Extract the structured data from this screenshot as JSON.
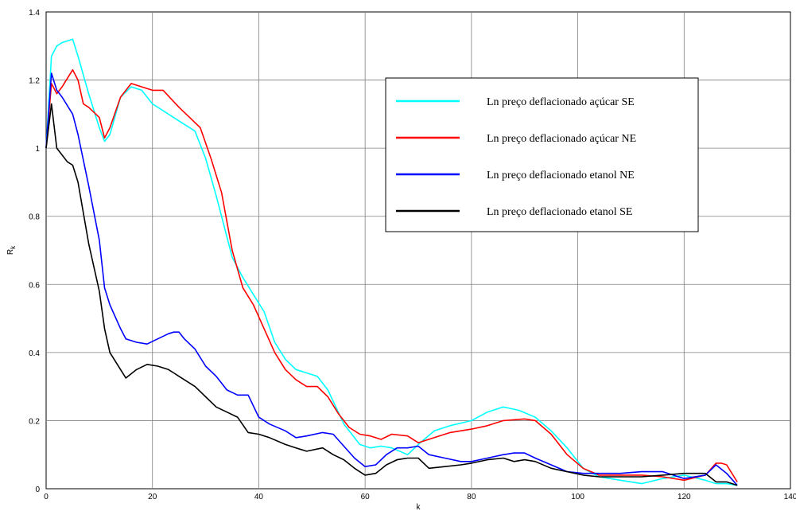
{
  "chart_data": {
    "type": "line",
    "title": "",
    "xlabel": "k",
    "ylabel": "R_k",
    "xlim": [
      0,
      140
    ],
    "ylim": [
      0,
      1.4
    ],
    "xticks": [
      0,
      20,
      40,
      60,
      80,
      100,
      120,
      140
    ],
    "yticks": [
      0,
      0.2,
      0.4,
      0.6,
      0.8,
      1,
      1.2,
      1.4
    ],
    "xtick_labels": [
      "0",
      "20",
      "40",
      "60",
      "80",
      "100",
      "120",
      "140"
    ],
    "ytick_labels": [
      "0",
      "0.2",
      "0.4",
      "0.6",
      "0.8",
      "1",
      "1.2",
      "1.4"
    ],
    "grid": true,
    "legend_position": "upper-right",
    "series": [
      {
        "name": "Ln preço deflacionado açúcar SE",
        "color": "#00ffff",
        "x": [
          0,
          1,
          2,
          3,
          5,
          6,
          8,
          10,
          11,
          12,
          14,
          16,
          18,
          20,
          22,
          25,
          28,
          30,
          32,
          35,
          37,
          39,
          41,
          43,
          45,
          47,
          49,
          51,
          53,
          56,
          59,
          61,
          63,
          65,
          68,
          70,
          73,
          76,
          80,
          83,
          86,
          89,
          92,
          95,
          98,
          101,
          104,
          108,
          112,
          116,
          120,
          124,
          126,
          128,
          130
        ],
        "values": [
          1.0,
          1.27,
          1.3,
          1.31,
          1.32,
          1.27,
          1.16,
          1.06,
          1.02,
          1.04,
          1.15,
          1.18,
          1.17,
          1.13,
          1.11,
          1.08,
          1.05,
          0.97,
          0.86,
          0.68,
          0.62,
          0.57,
          0.52,
          0.43,
          0.38,
          0.35,
          0.34,
          0.33,
          0.29,
          0.19,
          0.13,
          0.12,
          0.125,
          0.12,
          0.1,
          0.13,
          0.17,
          0.185,
          0.2,
          0.225,
          0.24,
          0.23,
          0.21,
          0.17,
          0.12,
          0.06,
          0.035,
          0.025,
          0.015,
          0.03,
          0.04,
          0.025,
          0.015,
          0.015,
          0.01
        ]
      },
      {
        "name": "Ln preço deflacionado açúcar NE",
        "color": "#ff0000",
        "x": [
          0,
          1,
          2,
          3,
          5,
          6,
          7,
          8,
          10,
          11,
          12,
          14,
          16,
          18,
          20,
          22,
          25,
          27,
          29,
          31,
          33,
          35,
          37,
          39,
          41,
          43,
          45,
          47,
          49,
          51,
          53,
          55,
          57,
          59,
          61,
          63,
          65,
          68,
          70,
          73,
          76,
          80,
          83,
          86,
          90,
          92,
          95,
          98,
          101,
          104,
          108,
          112,
          116,
          120,
          124,
          126,
          127,
          128,
          130
        ],
        "values": [
          1.0,
          1.19,
          1.16,
          1.18,
          1.23,
          1.2,
          1.13,
          1.12,
          1.09,
          1.03,
          1.06,
          1.15,
          1.19,
          1.18,
          1.17,
          1.17,
          1.12,
          1.09,
          1.06,
          0.97,
          0.87,
          0.7,
          0.59,
          0.54,
          0.47,
          0.4,
          0.35,
          0.32,
          0.3,
          0.3,
          0.27,
          0.22,
          0.18,
          0.16,
          0.155,
          0.145,
          0.16,
          0.155,
          0.135,
          0.15,
          0.165,
          0.175,
          0.185,
          0.2,
          0.205,
          0.2,
          0.16,
          0.1,
          0.06,
          0.04,
          0.04,
          0.04,
          0.035,
          0.025,
          0.04,
          0.075,
          0.075,
          0.07,
          0.02
        ]
      },
      {
        "name": "Ln preço deflacionado etanol NE",
        "color": "#0000ff",
        "x": [
          0,
          1,
          2,
          3,
          5,
          6,
          8,
          10,
          11,
          12,
          14,
          15,
          17,
          19,
          21,
          23,
          24,
          25,
          26,
          28,
          30,
          32,
          34,
          36,
          38,
          40,
          42,
          45,
          47,
          49,
          52,
          54,
          56,
          58,
          60,
          62,
          64,
          66,
          68,
          70,
          72,
          75,
          78,
          80,
          83,
          86,
          88,
          90,
          92,
          95,
          98,
          101,
          104,
          108,
          112,
          116,
          120,
          124,
          126,
          128,
          130
        ],
        "values": [
          1.0,
          1.22,
          1.17,
          1.15,
          1.1,
          1.04,
          0.89,
          0.73,
          0.59,
          0.54,
          0.47,
          0.44,
          0.43,
          0.425,
          0.44,
          0.455,
          0.46,
          0.46,
          0.44,
          0.41,
          0.36,
          0.33,
          0.29,
          0.275,
          0.275,
          0.21,
          0.19,
          0.17,
          0.15,
          0.155,
          0.165,
          0.16,
          0.125,
          0.09,
          0.065,
          0.07,
          0.1,
          0.12,
          0.12,
          0.125,
          0.1,
          0.09,
          0.08,
          0.08,
          0.09,
          0.1,
          0.105,
          0.105,
          0.09,
          0.07,
          0.05,
          0.045,
          0.045,
          0.045,
          0.05,
          0.05,
          0.03,
          0.04,
          0.07,
          0.045,
          0.01
        ]
      },
      {
        "name": "Ln preço deflacionado etanol SE",
        "color": "#000000",
        "x": [
          0,
          1,
          2,
          3,
          4,
          5,
          6,
          8,
          10,
          11,
          12,
          14,
          15,
          17,
          19,
          21,
          23,
          24,
          25,
          26,
          28,
          30,
          32,
          34,
          36,
          38,
          40,
          42,
          45,
          47,
          49,
          52,
          54,
          56,
          58,
          60,
          62,
          64,
          66,
          68,
          70,
          72,
          75,
          78,
          80,
          83,
          86,
          88,
          90,
          92,
          95,
          98,
          101,
          104,
          108,
          112,
          116,
          120,
          124,
          126,
          128,
          130
        ],
        "values": [
          1.0,
          1.13,
          1.0,
          0.98,
          0.96,
          0.95,
          0.9,
          0.72,
          0.58,
          0.47,
          0.4,
          0.35,
          0.325,
          0.35,
          0.365,
          0.36,
          0.35,
          0.34,
          0.33,
          0.32,
          0.3,
          0.27,
          0.24,
          0.225,
          0.21,
          0.165,
          0.16,
          0.15,
          0.13,
          0.12,
          0.11,
          0.12,
          0.1,
          0.085,
          0.06,
          0.04,
          0.045,
          0.07,
          0.085,
          0.09,
          0.09,
          0.06,
          0.065,
          0.07,
          0.075,
          0.085,
          0.09,
          0.08,
          0.085,
          0.08,
          0.06,
          0.05,
          0.04,
          0.035,
          0.035,
          0.035,
          0.04,
          0.045,
          0.045,
          0.02,
          0.02,
          0.01
        ]
      }
    ]
  }
}
